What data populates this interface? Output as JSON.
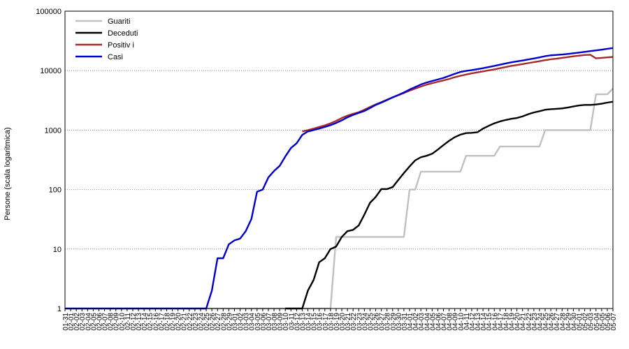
{
  "chart_data": {
    "type": "line",
    "title": "",
    "xlabel": "",
    "ylabel": "Persone (scala logaritmica)",
    "y_scale": "log",
    "ylim": [
      1,
      100000
    ],
    "y_ticks": [
      "1",
      "10",
      "100",
      "1000",
      "10000",
      "100000"
    ],
    "grid": "horizontal dotted",
    "legend_position": "top-left",
    "x_dates": [
      "01-31",
      "02-01",
      "02-02",
      "02-03",
      "02-04",
      "02-05",
      "02-06",
      "02-07",
      "02-08",
      "02-09",
      "02-10",
      "02-11",
      "02-12",
      "02-13",
      "02-14",
      "02-15",
      "02-16",
      "02-17",
      "02-18",
      "02-19",
      "02-20",
      "02-21",
      "02-22",
      "02-23",
      "02-24",
      "02-25",
      "02-26",
      "02-27",
      "02-28",
      "02-29",
      "03-01",
      "03-02",
      "03-03",
      "03-04",
      "03-05",
      "03-06",
      "03-07",
      "03-08",
      "03-09",
      "03-10",
      "03-11",
      "03-12",
      "03-13",
      "03-14",
      "03-15",
      "03-16",
      "03-17",
      "03-18",
      "03-19",
      "03-20",
      "03-21",
      "03-22",
      "03-23",
      "03-24",
      "03-25",
      "03-26",
      "03-27",
      "03-28",
      "03-29",
      "03-30",
      "03-31",
      "04-01",
      "04-02",
      "04-03",
      "04-04",
      "04-05",
      "04-06",
      "04-07",
      "04-08",
      "04-09",
      "04-10",
      "04-11",
      "04-12",
      "04-13",
      "04-14",
      "04-15",
      "04-16",
      "04-17",
      "04-18",
      "04-19",
      "04-20",
      "04-21",
      "04-22",
      "04-23",
      "04-24",
      "04-25",
      "04-26",
      "04-27",
      "04-28",
      "04-29",
      "04-30",
      "05-01",
      "05-02",
      "05-03",
      "05-04",
      "05-05",
      "05-06",
      "05-07"
    ],
    "series": [
      {
        "name": "Guariti",
        "color": "#c0c0c0",
        "points": [
          [
            "01-31",
            1
          ],
          [
            "03-18",
            1
          ],
          [
            "03-19",
            16
          ],
          [
            "03-31",
            16
          ],
          [
            "04-01",
            100
          ],
          [
            "04-02",
            100
          ],
          [
            "04-03",
            200
          ],
          [
            "04-10",
            200
          ],
          [
            "04-11",
            370
          ],
          [
            "04-16",
            370
          ],
          [
            "04-17",
            530
          ],
          [
            "04-24",
            530
          ],
          [
            "04-25",
            1000
          ],
          [
            "05-03",
            1000
          ],
          [
            "05-04",
            4000
          ],
          [
            "05-06",
            4000
          ],
          [
            "05-07",
            5000
          ]
        ]
      },
      {
        "name": "Deceduti",
        "color": "#000000",
        "points": [
          [
            "03-10",
            1
          ],
          [
            "03-12",
            1
          ],
          [
            "03-13",
            1
          ],
          [
            "03-14",
            2
          ],
          [
            "03-15",
            3
          ],
          [
            "03-16",
            6
          ],
          [
            "03-17",
            7
          ],
          [
            "03-18",
            10
          ],
          [
            "03-19",
            11
          ],
          [
            "03-20",
            16
          ],
          [
            "03-21",
            20
          ],
          [
            "03-22",
            21
          ],
          [
            "03-23",
            25
          ],
          [
            "03-24",
            38
          ],
          [
            "03-25",
            60
          ],
          [
            "03-26",
            75
          ],
          [
            "03-27",
            102
          ],
          [
            "03-28",
            102
          ],
          [
            "03-29",
            110
          ],
          [
            "03-30",
            145
          ],
          [
            "03-31",
            190
          ],
          [
            "04-01",
            245
          ],
          [
            "04-02",
            310
          ],
          [
            "04-03",
            350
          ],
          [
            "04-04",
            370
          ],
          [
            "04-05",
            400
          ],
          [
            "04-06",
            470
          ],
          [
            "04-07",
            560
          ],
          [
            "04-08",
            660
          ],
          [
            "04-09",
            760
          ],
          [
            "04-10",
            840
          ],
          [
            "04-11",
            890
          ],
          [
            "04-12",
            900
          ],
          [
            "04-13",
            920
          ],
          [
            "04-14",
            1060
          ],
          [
            "04-15",
            1180
          ],
          [
            "04-16",
            1300
          ],
          [
            "04-17",
            1400
          ],
          [
            "04-18",
            1480
          ],
          [
            "04-19",
            1550
          ],
          [
            "04-20",
            1600
          ],
          [
            "04-21",
            1700
          ],
          [
            "04-22",
            1850
          ],
          [
            "04-23",
            1980
          ],
          [
            "04-24",
            2080
          ],
          [
            "04-25",
            2200
          ],
          [
            "04-26",
            2250
          ],
          [
            "04-27",
            2280
          ],
          [
            "04-28",
            2320
          ],
          [
            "04-29",
            2400
          ],
          [
            "04-30",
            2500
          ],
          [
            "05-01",
            2600
          ],
          [
            "05-02",
            2650
          ],
          [
            "05-03",
            2650
          ],
          [
            "05-04",
            2700
          ],
          [
            "05-05",
            2780
          ],
          [
            "05-06",
            2900
          ],
          [
            "05-07",
            3000
          ]
        ]
      },
      {
        "name": "Positiv i",
        "color": "#a52a2a",
        "points": [
          [
            "03-13",
            950
          ],
          [
            "03-14",
            1000
          ],
          [
            "03-15",
            1060
          ],
          [
            "03-16",
            1130
          ],
          [
            "03-17",
            1200
          ],
          [
            "03-18",
            1300
          ],
          [
            "03-19",
            1430
          ],
          [
            "03-20",
            1600
          ],
          [
            "03-21",
            1750
          ],
          [
            "03-22",
            1880
          ],
          [
            "03-23",
            2000
          ],
          [
            "03-24",
            2200
          ],
          [
            "03-25",
            2450
          ],
          [
            "03-26",
            2700
          ],
          [
            "03-27",
            2950
          ],
          [
            "03-28",
            3250
          ],
          [
            "03-29",
            3550
          ],
          [
            "03-30",
            3850
          ],
          [
            "03-31",
            4200
          ],
          [
            "04-01",
            4600
          ],
          [
            "04-02",
            5000
          ],
          [
            "04-03",
            5400
          ],
          [
            "04-04",
            5800
          ],
          [
            "04-05",
            6150
          ],
          [
            "04-06",
            6500
          ],
          [
            "04-07",
            6850
          ],
          [
            "04-08",
            7250
          ],
          [
            "04-09",
            7750
          ],
          [
            "04-10",
            8200
          ],
          [
            "04-11",
            8600
          ],
          [
            "04-12",
            9000
          ],
          [
            "04-13",
            9350
          ],
          [
            "04-14",
            9700
          ],
          [
            "04-15",
            10100
          ],
          [
            "04-16",
            10500
          ],
          [
            "04-17",
            11000
          ],
          [
            "04-18",
            11500
          ],
          [
            "04-19",
            12000
          ],
          [
            "04-20",
            12400
          ],
          [
            "04-21",
            12900
          ],
          [
            "04-22",
            13400
          ],
          [
            "04-23",
            13900
          ],
          [
            "04-24",
            14400
          ],
          [
            "04-25",
            15000
          ],
          [
            "04-26",
            15500
          ],
          [
            "04-27",
            15900
          ],
          [
            "04-28",
            16400
          ],
          [
            "04-29",
            16900
          ],
          [
            "04-30",
            17400
          ],
          [
            "05-01",
            17900
          ],
          [
            "05-02",
            18300
          ],
          [
            "05-03",
            18500
          ],
          [
            "05-04",
            16100
          ],
          [
            "05-05",
            16400
          ],
          [
            "05-06",
            16700
          ],
          [
            "05-07",
            17000
          ]
        ]
      },
      {
        "name": "Casi",
        "color": "#0000cd",
        "points": [
          [
            "01-31",
            1
          ],
          [
            "02-24",
            1
          ],
          [
            "02-25",
            1
          ],
          [
            "02-26",
            2
          ],
          [
            "02-27",
            7
          ],
          [
            "02-28",
            7
          ],
          [
            "02-29",
            12
          ],
          [
            "03-01",
            14
          ],
          [
            "03-02",
            15
          ],
          [
            "03-03",
            20
          ],
          [
            "03-04",
            32
          ],
          [
            "03-05",
            92
          ],
          [
            "03-06",
            100
          ],
          [
            "03-07",
            160
          ],
          [
            "03-08",
            205
          ],
          [
            "03-09",
            250
          ],
          [
            "03-10",
            360
          ],
          [
            "03-11",
            500
          ],
          [
            "03-12",
            600
          ],
          [
            "03-13",
            830
          ],
          [
            "03-14",
            950
          ],
          [
            "03-15",
            1000
          ],
          [
            "03-16",
            1060
          ],
          [
            "03-17",
            1130
          ],
          [
            "03-18",
            1210
          ],
          [
            "03-19",
            1320
          ],
          [
            "03-20",
            1460
          ],
          [
            "03-21",
            1640
          ],
          [
            "03-22",
            1800
          ],
          [
            "03-23",
            1950
          ],
          [
            "03-24",
            2100
          ],
          [
            "03-25",
            2350
          ],
          [
            "03-26",
            2650
          ],
          [
            "03-27",
            2900
          ],
          [
            "03-28",
            3200
          ],
          [
            "03-29",
            3550
          ],
          [
            "03-30",
            3900
          ],
          [
            "03-31",
            4300
          ],
          [
            "04-01",
            4800
          ],
          [
            "04-02",
            5300
          ],
          [
            "04-03",
            5850
          ],
          [
            "04-04",
            6300
          ],
          [
            "04-05",
            6700
          ],
          [
            "04-06",
            7100
          ],
          [
            "04-07",
            7550
          ],
          [
            "04-08",
            8150
          ],
          [
            "04-09",
            8850
          ],
          [
            "04-10",
            9500
          ],
          [
            "04-11",
            9900
          ],
          [
            "04-12",
            10200
          ],
          [
            "04-13",
            10600
          ],
          [
            "04-14",
            11000
          ],
          [
            "04-15",
            11500
          ],
          [
            "04-16",
            12000
          ],
          [
            "04-17",
            12600
          ],
          [
            "04-18",
            13200
          ],
          [
            "04-19",
            13800
          ],
          [
            "04-20",
            14300
          ],
          [
            "04-21",
            14800
          ],
          [
            "04-22",
            15400
          ],
          [
            "04-23",
            16000
          ],
          [
            "04-24",
            16700
          ],
          [
            "04-25",
            17500
          ],
          [
            "04-26",
            18100
          ],
          [
            "04-27",
            18400
          ],
          [
            "04-28",
            18700
          ],
          [
            "04-29",
            19100
          ],
          [
            "04-30",
            19600
          ],
          [
            "05-01",
            20100
          ],
          [
            "05-02",
            20700
          ],
          [
            "05-03",
            21300
          ],
          [
            "05-04",
            21900
          ],
          [
            "05-05",
            22500
          ],
          [
            "05-06",
            23300
          ],
          [
            "05-07",
            24000
          ]
        ]
      }
    ]
  }
}
